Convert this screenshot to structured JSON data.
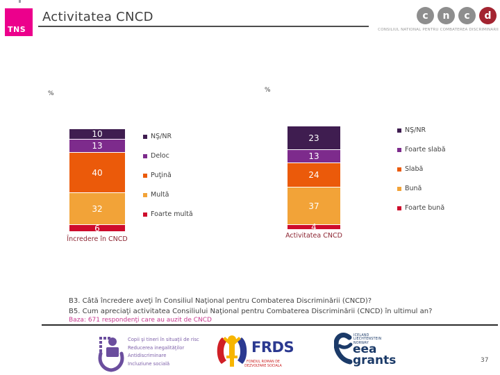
{
  "header": {
    "tns_logo_text": "TNS",
    "title": "Activitatea CNCD",
    "cncd_logo": {
      "letters": [
        "c",
        "n",
        "c",
        "d"
      ],
      "letter_colors": [
        "#8E8E8E",
        "#8E8E8E",
        "#8E8E8E",
        "#A32431"
      ],
      "caption": "CONSILIUL NATIONAL PENTRU COMBATEREA DISCRIMINARII"
    }
  },
  "chart_data": [
    {
      "type": "bar",
      "stacked": true,
      "title": "Încredere în CNCD",
      "ylabel": "%",
      "categories": [
        "Încredere în CNCD"
      ],
      "series": [
        {
          "name": "NŞ/NR",
          "values": [
            10
          ]
        },
        {
          "name": "Deloc",
          "values": [
            13
          ]
        },
        {
          "name": "Puţină",
          "values": [
            40
          ]
        },
        {
          "name": "Multă",
          "values": [
            32
          ]
        },
        {
          "name": "Foarte multă",
          "values": [
            6
          ]
        }
      ],
      "legend_position": "right",
      "data_labels": true
    },
    {
      "type": "bar",
      "stacked": true,
      "title": "Activitatea CNCD",
      "ylabel": "%",
      "categories": [
        "Activitatea CNCD"
      ],
      "series": [
        {
          "name": "NŞ/NR",
          "values": [
            23
          ]
        },
        {
          "name": "Foarte slabă",
          "values": [
            13
          ]
        },
        {
          "name": "Slabă",
          "values": [
            24
          ]
        },
        {
          "name": "Bună",
          "values": [
            37
          ]
        },
        {
          "name": "Foarte bună",
          "values": [
            4
          ]
        }
      ],
      "legend_position": "right",
      "data_labels": true
    }
  ],
  "charts": {
    "left": {
      "percent_label": "%",
      "category_label": "Încredere în CNCD",
      "segments": [
        {
          "label": "NŞ/NR",
          "value": 10,
          "color": "#3F1D50"
        },
        {
          "label": "Deloc",
          "value": 13,
          "color": "#7D2B8C"
        },
        {
          "label": "Puţină",
          "value": 40,
          "color": "#EB5A0A"
        },
        {
          "label": "Multă",
          "value": 32,
          "color": "#F2A338"
        },
        {
          "label": "Foarte multă",
          "value": 6,
          "color": "#CE0B2C"
        }
      ]
    },
    "right": {
      "percent_label": "%",
      "category_label": "Activitatea CNCD",
      "segments": [
        {
          "label": "NŞ/NR",
          "value": 23,
          "color": "#3F1D50"
        },
        {
          "label": "Foarte slabă",
          "value": 13,
          "color": "#7D2B8C"
        },
        {
          "label": "Slabă",
          "value": 24,
          "color": "#EB5A0A"
        },
        {
          "label": "Bună",
          "value": 37,
          "color": "#F2A338"
        },
        {
          "label": "Foarte bună",
          "value": 4,
          "color": "#CE0B2C"
        }
      ]
    }
  },
  "footnotes": {
    "q1": "B3. Câtă încredere aveţi în Consiliul Naţional pentru Combaterea Discriminării (CNCD)?",
    "q2": "B5. Cum apreciaţi activitatea Consiliului Naţional pentru Combaterea Discriminării (CNCD) în ultimul an?",
    "base": "Baza: 671 respondenţi care au auzit de CNCD"
  },
  "footer": {
    "program_logo_lines": [
      "Copii şi tineri în situaţii de risc",
      "Reducerea inegalităţilor",
      "Antidiscriminare",
      "Incluziune socială"
    ],
    "frds": {
      "acronym": "FRDS",
      "caption": "FONDUL ROMAN DE DEZVOLTARE SOCIALA"
    },
    "eea": {
      "countries": [
        "ICELAND",
        "LIECHTENSTEIN",
        "NORWAY"
      ],
      "line1": "eea",
      "line2": "grants"
    },
    "page_number": "37"
  }
}
